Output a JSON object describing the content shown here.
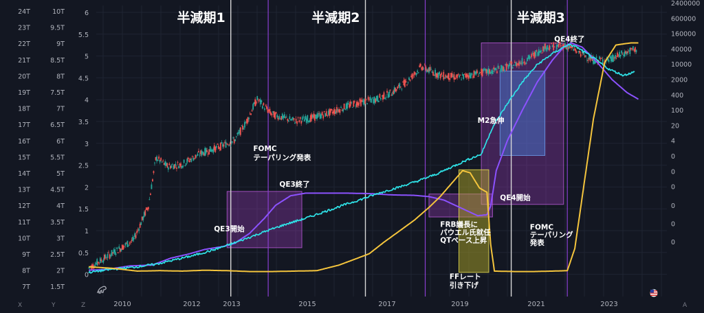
{
  "chart_data": {
    "type": "line",
    "x_ticks": [
      "2010",
      "2012",
      "2013",
      "2015",
      "2017",
      "2019",
      "2021",
      "2023"
    ],
    "axes": {
      "axis1_ticks": [
        "24T",
        "23T",
        "22T",
        "21T",
        "20T",
        "19T",
        "18T",
        "17T",
        "16T",
        "15T",
        "14T",
        "13T",
        "12T",
        "11T",
        "10T",
        "9T",
        "8T",
        "7T"
      ],
      "axis2_ticks": [
        "10T",
        "9.5T",
        "9T",
        "8.5T",
        "8T",
        "7.5T",
        "7T",
        "6.5T",
        "6T",
        "5.5T",
        "5T",
        "4.5T",
        "4T",
        "3.5T",
        "3T",
        "2.5T",
        "2T",
        "1.5T"
      ],
      "axis3_ticks": [
        "6",
        "5.5",
        "5",
        "4.5",
        "4",
        "3.5",
        "3",
        "2.5",
        "2",
        "1.5",
        "1",
        "0.5",
        "0"
      ],
      "axis4_ticks": [
        "2400000",
        "600000",
        "160000",
        "40000",
        "10000",
        "2000",
        "400",
        "100",
        "20",
        "4",
        "0",
        "0",
        "0"
      ],
      "axis4_ticks_lower": [
        "0",
        "0",
        "0"
      ],
      "corner_letters": [
        "X",
        "Y",
        "Z",
        "A"
      ]
    },
    "halvings": [
      {
        "label": "半減期1",
        "x": 2012.9
      },
      {
        "label": "半減期2",
        "x": 2016.5
      },
      {
        "label": "半減期3",
        "x": 2020.4
      }
    ],
    "qe_boxes": [
      {
        "x0": 2012.8,
        "x1": 2014.8,
        "y0": 0.62,
        "y1": 1.92
      },
      {
        "x0": 2018.2,
        "x1": 2019.9,
        "y0": 1.33,
        "y1": 1.86
      },
      {
        "x0": 2019.6,
        "x1": 2021.8,
        "y0": 1.62,
        "y1": 5.35
      }
    ],
    "m2_box": {
      "x0": 2020.1,
      "x1": 2021.3,
      "y0": 2.75,
      "y1": 4.7
    },
    "ff_box": {
      "x0": 2019.0,
      "x1": 2019.8,
      "y0": 0.05,
      "y1": 2.42
    },
    "qe_lines": [
      2013.9,
      2018.1,
      2021.9
    ],
    "annotations": [
      {
        "text": "QE3開始",
        "x": 2012.45,
        "y": 1.0
      },
      {
        "text": "FOMC",
        "x": 2013.5,
        "y": 2.85
      },
      {
        "text": "テーパリング発表",
        "x": 2013.5,
        "y": 2.65
      },
      {
        "text": "QE3終了",
        "x": 2014.2,
        "y": 2.03
      },
      {
        "text": "FRB議長に",
        "x": 2018.5,
        "y": 1.1
      },
      {
        "text": "パウエル氏就任",
        "x": 2018.5,
        "y": 0.92
      },
      {
        "text": "QTペース上昇",
        "x": 2018.5,
        "y": 0.74
      },
      {
        "text": "M2急伸",
        "x": 2019.5,
        "y": 3.5
      },
      {
        "text": "QE4開始",
        "x": 2020.1,
        "y": 1.72
      },
      {
        "text": "QE4終了",
        "x": 2021.55,
        "y": 5.38
      },
      {
        "text": "FFレート",
        "x": 2018.75,
        "y": -0.1
      },
      {
        "text": "引き下げ",
        "x": 2018.75,
        "y": -0.3
      },
      {
        "text": "FOMC",
        "x": 2020.9,
        "y": 1.04
      },
      {
        "text": "テーパリング",
        "x": 2020.9,
        "y": 0.86
      },
      {
        "text": "発表",
        "x": 2020.9,
        "y": 0.68
      }
    ],
    "series": [
      {
        "color": "#8c52ff",
        "points": [
          [
            2009.1,
            0.1
          ],
          [
            2009.6,
            0.12
          ],
          [
            2010.2,
            0.2
          ],
          [
            2010.8,
            0.22
          ],
          [
            2011.3,
            0.38
          ],
          [
            2011.8,
            0.48
          ],
          [
            2012.2,
            0.58
          ],
          [
            2012.7,
            0.65
          ],
          [
            2013.0,
            0.72
          ],
          [
            2013.4,
            0.95
          ],
          [
            2013.8,
            1.3
          ],
          [
            2014.1,
            1.6
          ],
          [
            2014.5,
            1.82
          ],
          [
            2014.9,
            1.88
          ],
          [
            2015.5,
            1.88
          ],
          [
            2016.0,
            1.88
          ],
          [
            2016.6,
            1.87
          ],
          [
            2017.2,
            1.84
          ],
          [
            2017.8,
            1.83
          ],
          [
            2018.2,
            1.8
          ],
          [
            2018.6,
            1.72
          ],
          [
            2018.9,
            1.6
          ],
          [
            2019.2,
            1.48
          ],
          [
            2019.5,
            1.36
          ],
          [
            2019.75,
            1.38
          ],
          [
            2019.85,
            1.58
          ],
          [
            2020.0,
            2.4
          ],
          [
            2020.3,
            3.1
          ],
          [
            2020.7,
            3.8
          ],
          [
            2021.1,
            4.45
          ],
          [
            2021.5,
            4.95
          ],
          [
            2021.8,
            5.25
          ],
          [
            2022.0,
            5.35
          ],
          [
            2022.3,
            5.25
          ],
          [
            2022.7,
            4.9
          ],
          [
            2023.1,
            4.5
          ],
          [
            2023.5,
            4.2
          ],
          [
            2023.8,
            4.05
          ]
        ]
      },
      {
        "color": "#2fe3e8",
        "points": [
          [
            2009.1,
            0.05
          ],
          [
            2009.7,
            0.12
          ],
          [
            2010.3,
            0.17
          ],
          [
            2010.9,
            0.24
          ],
          [
            2011.4,
            0.34
          ],
          [
            2011.9,
            0.44
          ],
          [
            2012.4,
            0.56
          ],
          [
            2012.9,
            0.7
          ],
          [
            2013.4,
            0.86
          ],
          [
            2013.9,
            1.02
          ],
          [
            2014.4,
            1.17
          ],
          [
            2014.9,
            1.3
          ],
          [
            2015.4,
            1.45
          ],
          [
            2015.9,
            1.6
          ],
          [
            2016.4,
            1.74
          ],
          [
            2016.9,
            1.89
          ],
          [
            2017.4,
            2.02
          ],
          [
            2017.9,
            2.16
          ],
          [
            2018.4,
            2.32
          ],
          [
            2018.9,
            2.52
          ],
          [
            2019.2,
            2.64
          ],
          [
            2019.6,
            2.78
          ],
          [
            2019.9,
            3.4
          ],
          [
            2020.3,
            3.95
          ],
          [
            2020.7,
            4.45
          ],
          [
            2021.1,
            4.85
          ],
          [
            2021.5,
            5.1
          ],
          [
            2021.9,
            5.3
          ],
          [
            2022.1,
            5.28
          ],
          [
            2022.6,
            5.0
          ],
          [
            2023.0,
            4.75
          ],
          [
            2023.4,
            4.6
          ],
          [
            2023.7,
            4.68
          ]
        ]
      },
      {
        "color": "#f5c53d",
        "points": [
          [
            2009.1,
            0.18
          ],
          [
            2009.8,
            0.14
          ],
          [
            2010.4,
            0.08
          ],
          [
            2011.0,
            0.09
          ],
          [
            2011.6,
            0.08
          ],
          [
            2012.2,
            0.1
          ],
          [
            2012.8,
            0.09
          ],
          [
            2013.4,
            0.07
          ],
          [
            2014.0,
            0.07
          ],
          [
            2014.6,
            0.08
          ],
          [
            2015.2,
            0.09
          ],
          [
            2015.8,
            0.22
          ],
          [
            2016.2,
            0.35
          ],
          [
            2016.6,
            0.48
          ],
          [
            2017.0,
            0.75
          ],
          [
            2017.4,
            1.0
          ],
          [
            2017.8,
            1.25
          ],
          [
            2018.2,
            1.55
          ],
          [
            2018.5,
            1.8
          ],
          [
            2018.8,
            2.1
          ],
          [
            2019.1,
            2.4
          ],
          [
            2019.3,
            2.35
          ],
          [
            2019.55,
            2.0
          ],
          [
            2019.75,
            1.9
          ],
          [
            2019.85,
            0.7
          ],
          [
            2019.95,
            0.08
          ],
          [
            2020.5,
            0.07
          ],
          [
            2021.0,
            0.07
          ],
          [
            2021.5,
            0.08
          ],
          [
            2021.9,
            0.09
          ],
          [
            2022.1,
            0.6
          ],
          [
            2022.3,
            1.8
          ],
          [
            2022.6,
            3.6
          ],
          [
            2022.9,
            4.9
          ],
          [
            2023.2,
            5.3
          ],
          [
            2023.6,
            5.35
          ],
          [
            2023.8,
            5.35
          ]
        ]
      }
    ]
  }
}
